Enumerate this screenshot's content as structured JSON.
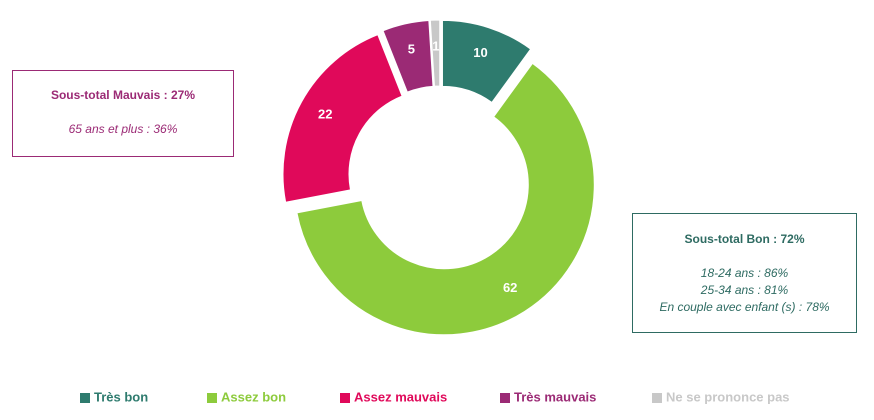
{
  "chart_data": {
    "type": "donut",
    "categories": [
      "Très bon",
      "Assez bon",
      "Assez mauvais",
      "Très mauvais",
      "Ne se prononce pas"
    ],
    "values": [
      10,
      62,
      22,
      5,
      1
    ],
    "colors": [
      "#2e7b6e",
      "#8dcb3c",
      "#e0095a",
      "#9b2a75",
      "#c8c8c8"
    ],
    "annotations": [
      {
        "color": "#9b2a75",
        "lines": [
          "Sous-total Mauvais :  27%",
          "65 ans et plus : 36%"
        ]
      },
      {
        "color": "#2e6b62",
        "lines": [
          "Sous-total Bon : 72%",
          "18-24 ans : 86%",
          "25-34 ans : 81%",
          "En couple avec enfant (s) : 78%"
        ]
      }
    ]
  }
}
